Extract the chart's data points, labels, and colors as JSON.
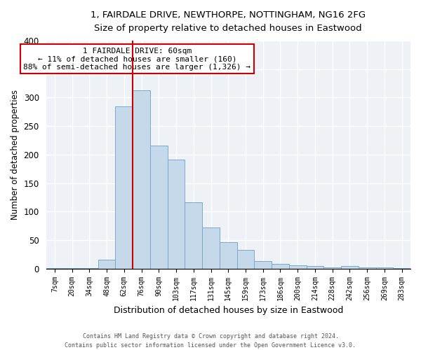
{
  "title": "1, FAIRDALE DRIVE, NEWTHORPE, NOTTINGHAM, NG16 2FG",
  "subtitle": "Size of property relative to detached houses in Eastwood",
  "xlabel": "Distribution of detached houses by size in Eastwood",
  "ylabel": "Number of detached properties",
  "bar_labels": [
    "7sqm",
    "20sqm",
    "34sqm",
    "48sqm",
    "62sqm",
    "76sqm",
    "90sqm",
    "103sqm",
    "117sqm",
    "131sqm",
    "145sqm",
    "159sqm",
    "173sqm",
    "186sqm",
    "200sqm",
    "214sqm",
    "228sqm",
    "242sqm",
    "256sqm",
    "269sqm",
    "283sqm"
  ],
  "bar_values": [
    1,
    1,
    1,
    16,
    285,
    313,
    216,
    191,
    116,
    72,
    46,
    33,
    13,
    8,
    6,
    4,
    2,
    5,
    2,
    2,
    1
  ],
  "bar_color": "#c5d9ea",
  "bar_edge_color": "#7aaac8",
  "vline_color": "#cc0000",
  "vline_x_index": 4,
  "annotation_title": "1 FAIRDALE DRIVE: 60sqm",
  "annotation_line1": "← 11% of detached houses are smaller (160)",
  "annotation_line2": "88% of semi-detached houses are larger (1,326) →",
  "annotation_box_color": "#ffffff",
  "annotation_box_edge": "#cc0000",
  "ylim": [
    0,
    400
  ],
  "yticks": [
    0,
    50,
    100,
    150,
    200,
    250,
    300,
    350,
    400
  ],
  "footer1": "Contains HM Land Registry data © Crown copyright and database right 2024.",
  "footer2": "Contains public sector information licensed under the Open Government Licence v3.0.",
  "background_color": "#eef2f7",
  "grid_color": "#ffffff",
  "figure_bg": "#ffffff"
}
